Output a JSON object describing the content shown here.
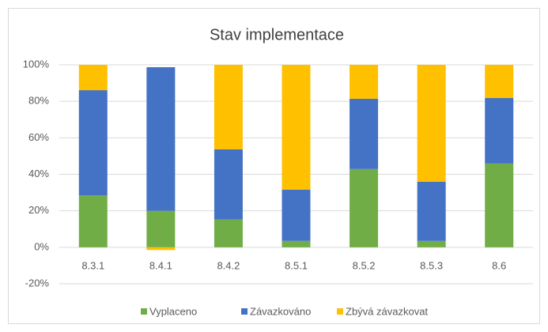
{
  "chart_data": {
    "type": "bar",
    "stacked": true,
    "title": "Stav implementace",
    "categories": [
      "8.3.1",
      "8.4.1",
      "8.4.2",
      "8.5.1",
      "8.5.2",
      "8.5.3",
      "8.6"
    ],
    "series": [
      {
        "name": "Vyplaceno",
        "color": "#70ad47",
        "values": [
          28.5,
          20,
          15.2,
          3.5,
          42.9,
          3.5,
          45.9
        ]
      },
      {
        "name": "Závazkováno",
        "color": "#4472c4",
        "values": [
          57.6,
          78.7,
          38.5,
          28.1,
          38.5,
          32.4,
          35.9
        ]
      },
      {
        "name": "Zbývá závazkovat",
        "color": "#ffc000",
        "values": [
          13.9,
          -1.5,
          46.3,
          68.4,
          18.6,
          64.1,
          18.2
        ]
      }
    ],
    "ylim": [
      -20,
      100
    ],
    "yticks": [
      {
        "value": -20,
        "label": "-20%"
      },
      {
        "value": 0,
        "label": "0%"
      },
      {
        "value": 20,
        "label": "20%"
      },
      {
        "value": 40,
        "label": "40%"
      },
      {
        "value": 60,
        "label": "60%"
      },
      {
        "value": 80,
        "label": "80%"
      },
      {
        "value": 100,
        "label": "100%"
      }
    ],
    "grid": true,
    "legend": "bottom"
  }
}
